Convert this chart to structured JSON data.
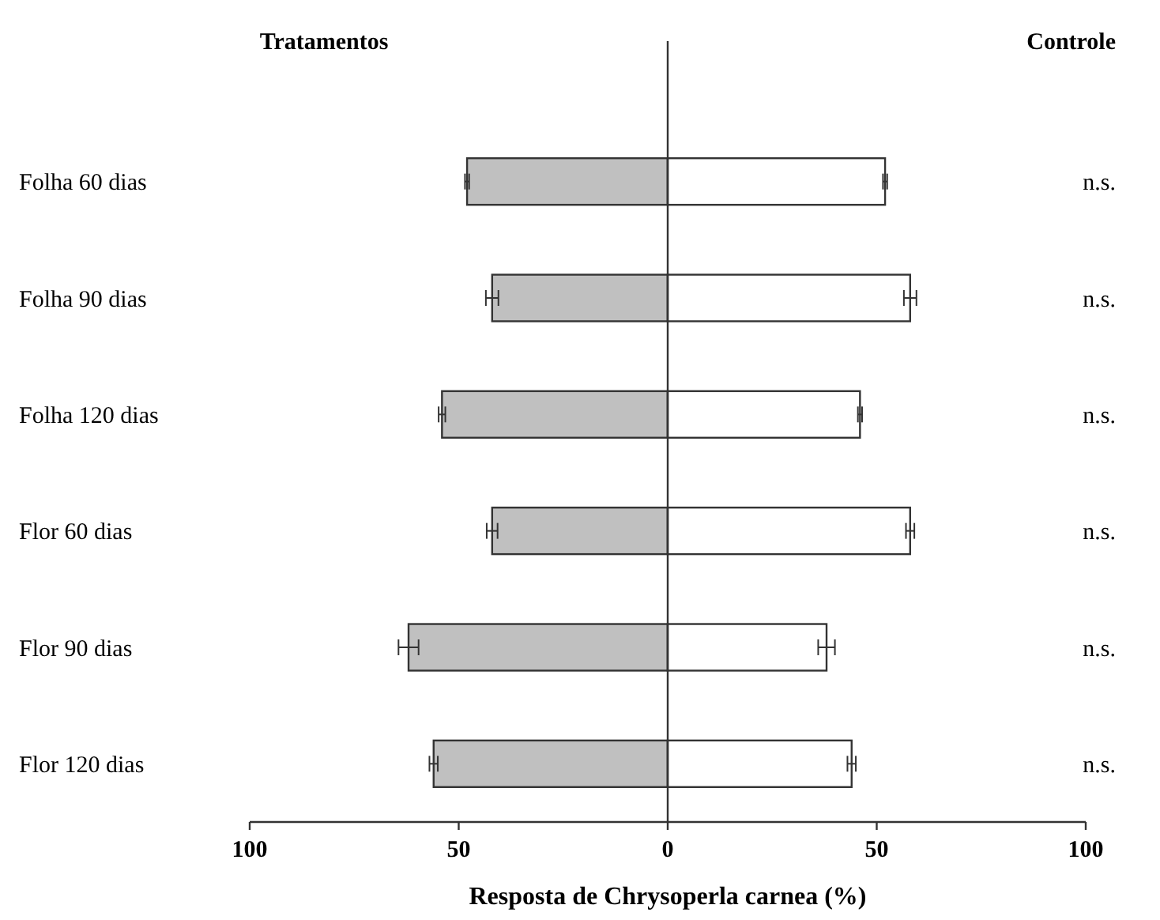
{
  "chart_data": {
    "type": "bar",
    "orientation": "horizontal",
    "stacked": true,
    "categories": [
      "Folha 60 dias",
      "Folha 90 dias",
      "Folha 120 dias",
      "Flor 60 dias",
      "Flor 90 dias",
      "Flor 120 dias"
    ],
    "series": [
      {
        "color": "#c0c0c0",
        "values": [
          -48,
          -42,
          -54,
          -42,
          -62,
          -56
        ],
        "errors": [
          0.5,
          1.5,
          0.8,
          1.3,
          2.4,
          1
        ]
      },
      {
        "color": "#ffffff",
        "values": [
          52,
          58,
          46,
          58,
          38,
          44
        ],
        "errors": [
          0.5,
          1.5,
          0.5,
          1,
          2,
          1
        ]
      }
    ],
    "xlim": [
      -100,
      100
    ],
    "xticks": [
      {
        "value": -100,
        "label": "100"
      },
      {
        "value": -50,
        "label": "50"
      },
      0,
      50,
      100
    ],
    "xlabel": "Resposta de Chrysoperla carnea (%)",
    "annotations": [
      "Tratamentos",
      "Controle",
      "n.s.",
      "n.s.",
      "n.s.",
      "n.s.",
      "n.s.",
      "n.s."
    ]
  }
}
